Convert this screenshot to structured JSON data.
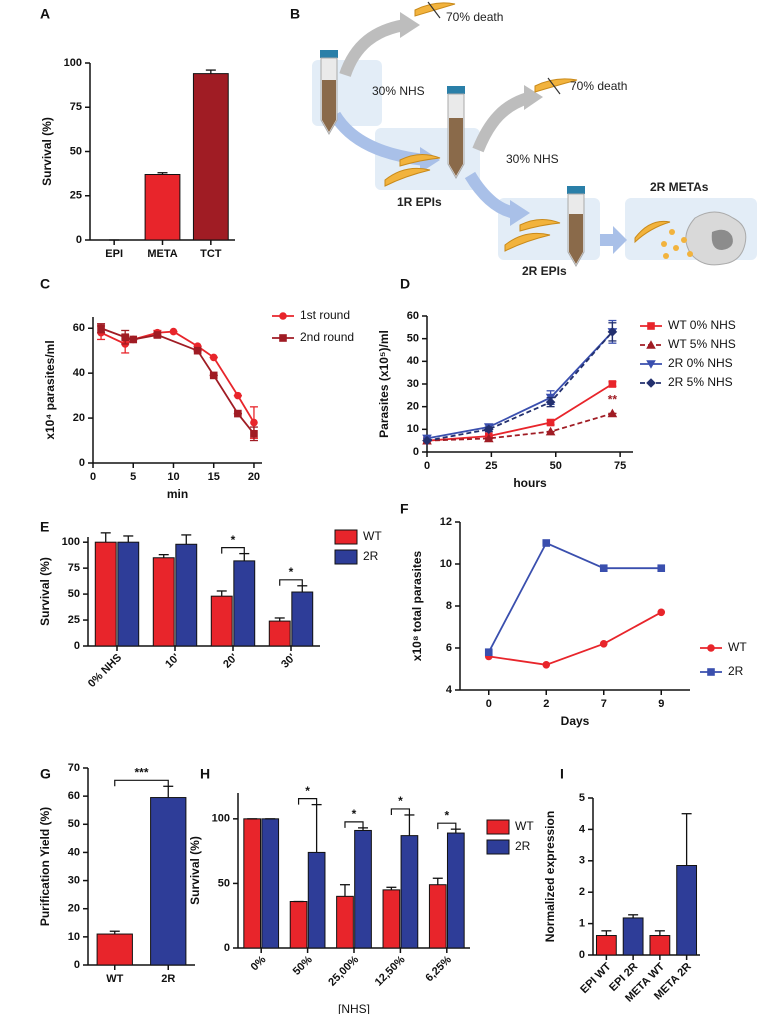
{
  "diagram": {
    "panel": "B",
    "labels": [
      "70% death",
      "30% NHS",
      "70% death",
      "30% NHS",
      "1R EPIs",
      "2R EPIs",
      "2R METAs"
    ]
  },
  "chart_data": [
    {
      "panel": "A",
      "type": "bar",
      "categories": [
        "EPI",
        "META",
        "TCT"
      ],
      "values": [
        0,
        37,
        94
      ],
      "errors": [
        0,
        1,
        2
      ],
      "colors": [
        "#e8252b",
        "#e8252b",
        "#a01c24"
      ],
      "ylabel": "Survival (%)",
      "ylim": [
        0,
        100
      ],
      "yticks": [
        0,
        25,
        50,
        75,
        100
      ]
    },
    {
      "panel": "C",
      "type": "line",
      "xlabel": "min",
      "ylabel": "x10⁴ parasites/ml",
      "xlim": [
        0,
        21
      ],
      "xticks": [
        0,
        5,
        10,
        15,
        20
      ],
      "ylim": [
        0,
        65
      ],
      "yticks": [
        0,
        20,
        40,
        60
      ],
      "legend": "right",
      "series": [
        {
          "name": "1st round",
          "color": "#e8252b",
          "marker": "circle",
          "x": [
            1,
            4,
            5,
            8,
            10,
            13,
            15,
            18,
            20
          ],
          "values": [
            58,
            53,
            55,
            58,
            58.5,
            52,
            47,
            30,
            18
          ],
          "errors": [
            3,
            4,
            0,
            1,
            0,
            0,
            0,
            0,
            7
          ]
        },
        {
          "name": "2nd round",
          "color": "#a01c24",
          "marker": "square",
          "x": [
            1,
            4,
            5,
            8,
            13,
            15,
            18,
            20
          ],
          "values": [
            60,
            56,
            55,
            57,
            50,
            39,
            22,
            13
          ],
          "errors": [
            2,
            3,
            0,
            1,
            0,
            0,
            0,
            3
          ]
        }
      ]
    },
    {
      "panel": "D",
      "type": "line",
      "xlabel": "hours",
      "ylabel": "Parasites (x10⁵)/ml",
      "xlim": [
        0,
        80
      ],
      "xticks": [
        0,
        25,
        50,
        75
      ],
      "ylim": [
        0,
        60
      ],
      "yticks": [
        0,
        10,
        20,
        30,
        40,
        50,
        60
      ],
      "legend": "right",
      "series": [
        {
          "name": "WT 0% NHS",
          "color": "#e8252b",
          "marker": "square",
          "dashed": false,
          "x": [
            0,
            24,
            48,
            72
          ],
          "values": [
            5,
            7,
            13,
            30
          ],
          "errors": [
            0,
            0,
            1,
            1
          ]
        },
        {
          "name": "WT 5% NHS",
          "color": "#a01c24",
          "marker": "triangle",
          "dashed": true,
          "x": [
            0,
            24,
            48,
            72
          ],
          "values": [
            5,
            6,
            9,
            17
          ],
          "errors": [
            0,
            0,
            0,
            0
          ]
        },
        {
          "name": "2R 0% NHS",
          "color": "#3a4fae",
          "marker": "triangle-down",
          "dashed": false,
          "x": [
            0,
            24,
            48,
            72
          ],
          "values": [
            6,
            11,
            24,
            53
          ],
          "errors": [
            0,
            1,
            3,
            5
          ]
        },
        {
          "name": "2R 5% NHS",
          "color": "#23306e",
          "marker": "diamond",
          "dashed": true,
          "x": [
            0,
            24,
            48,
            72
          ],
          "values": [
            5,
            10,
            22,
            53
          ],
          "errors": [
            0,
            1,
            2,
            4
          ]
        }
      ],
      "annotations": [
        {
          "text": "**",
          "series": "WT 5% NHS"
        }
      ]
    },
    {
      "panel": "E",
      "type": "bar",
      "categories": [
        "0% NHS",
        "10'",
        "20'",
        "30'"
      ],
      "xtick_rotation": 45,
      "ylabel": "Survival (%)",
      "ylim": [
        0,
        105
      ],
      "yticks": [
        0,
        25,
        50,
        75,
        100
      ],
      "legend": "right",
      "series": [
        {
          "name": "WT",
          "color": "#e8252b",
          "values": [
            100,
            85,
            48,
            24
          ],
          "errors": [
            9,
            3,
            5,
            3
          ]
        },
        {
          "name": "2R",
          "color": "#2e3d98",
          "values": [
            100,
            98,
            82,
            52
          ],
          "errors": [
            6,
            9,
            7,
            6
          ]
        }
      ],
      "annotations": [
        {
          "text": "*",
          "category": "20'"
        },
        {
          "text": "*",
          "category": "30'"
        }
      ]
    },
    {
      "panel": "F",
      "type": "line",
      "categories": [
        "0",
        "2",
        "7",
        "9"
      ],
      "xlabel": "Days",
      "ylabel": "x10⁸ total parasites",
      "ylim": [
        4,
        12
      ],
      "yticks": [
        4,
        6,
        8,
        10,
        12
      ],
      "legend": "right",
      "series": [
        {
          "name": "WT",
          "color": "#e8252b",
          "marker": "circle",
          "values": [
            5.6,
            5.2,
            6.2,
            7.7
          ]
        },
        {
          "name": "2R",
          "color": "#3a4fae",
          "marker": "square",
          "values": [
            5.8,
            11,
            9.8,
            9.8
          ]
        }
      ]
    },
    {
      "panel": "G",
      "type": "bar",
      "categories": [
        "WT",
        "2R"
      ],
      "values": [
        11,
        59.5
      ],
      "errors": [
        1,
        4
      ],
      "colors": [
        "#e8252b",
        "#2e3d98"
      ],
      "ylabel": "Purification Yield (%)",
      "ylim": [
        0,
        70
      ],
      "yticks": [
        0,
        10,
        20,
        30,
        40,
        50,
        60,
        70
      ],
      "annotations": [
        {
          "text": "***"
        }
      ]
    },
    {
      "panel": "H",
      "type": "bar",
      "categories": [
        "0%",
        "50%",
        "25,00%",
        "12,50%",
        "6,25%"
      ],
      "xtick_rotation": 45,
      "xlabel": "[NHS]",
      "ylabel": "Survival (%)",
      "ylim": [
        0,
        120
      ],
      "yticks": [
        0,
        50,
        100
      ],
      "legend": "right",
      "series": [
        {
          "name": "WT",
          "color": "#e8252b",
          "values": [
            100,
            36,
            40,
            45,
            49
          ],
          "errors": [
            0,
            0,
            9,
            2,
            5
          ]
        },
        {
          "name": "2R",
          "color": "#2e3d98",
          "values": [
            100,
            74,
            91,
            87,
            89
          ],
          "errors": [
            0,
            37,
            2,
            16,
            3
          ]
        }
      ],
      "annotations": [
        {
          "text": "*",
          "category": "50%"
        },
        {
          "text": "*",
          "category": "25,00%"
        },
        {
          "text": "*",
          "category": "12,50%"
        },
        {
          "text": "*",
          "category": "6,25%"
        }
      ]
    },
    {
      "panel": "I",
      "type": "bar",
      "categories": [
        "EPI WT",
        "EPI 2R",
        "META WT",
        "META 2R"
      ],
      "xtick_rotation": 45,
      "values": [
        0.62,
        1.18,
        0.62,
        2.85
      ],
      "errors": [
        0.15,
        0.1,
        0.15,
        1.65
      ],
      "colors": [
        "#e8252b",
        "#2e3d98",
        "#e8252b",
        "#2e3d98"
      ],
      "ylabel": "Normalized expression",
      "ylim": [
        0,
        5
      ],
      "yticks": [
        0,
        1,
        2,
        3,
        4,
        5
      ]
    }
  ]
}
